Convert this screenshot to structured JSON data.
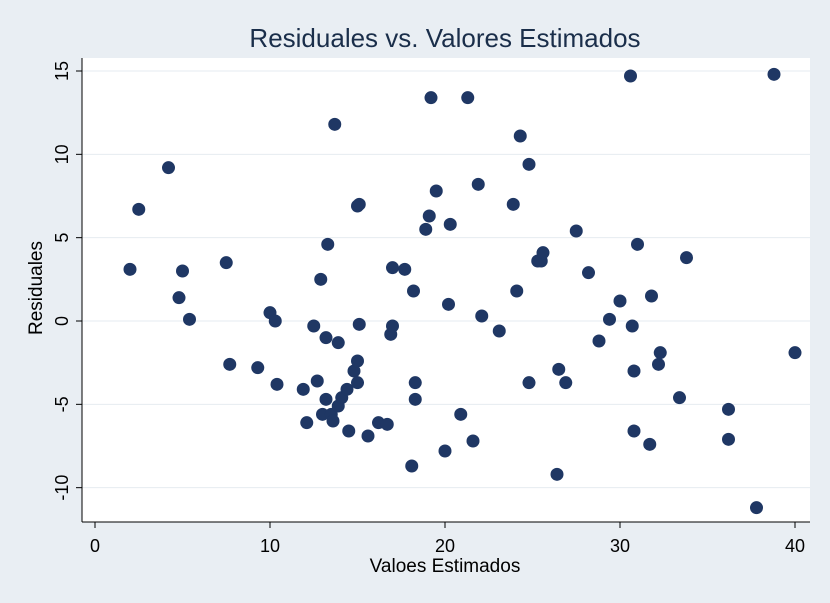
{
  "chart_data": {
    "type": "scatter",
    "title": "Residuales vs. Valores Estimados",
    "xlabel": "Valoes Estimados",
    "ylabel": "Residuales",
    "xlim": [
      0,
      40
    ],
    "ylim": [
      -10,
      15
    ],
    "xticks": [
      0,
      10,
      20,
      30,
      40
    ],
    "yticks": [
      -10,
      -5,
      0,
      5,
      10,
      15
    ],
    "grid": true,
    "colors": {
      "background": "#e9eef3",
      "plot_area": "#ffffff",
      "grid": "#e6ebf0",
      "point": "#1f3764",
      "title": "#1a2e4a"
    },
    "series": [
      {
        "points": [
          [
            2.0,
            3.1
          ],
          [
            2.5,
            6.7
          ],
          [
            4.2,
            9.2
          ],
          [
            4.8,
            1.4
          ],
          [
            5.0,
            3.0
          ],
          [
            5.4,
            0.1
          ],
          [
            7.5,
            3.5
          ],
          [
            7.7,
            -2.6
          ],
          [
            9.3,
            -2.8
          ],
          [
            10.0,
            0.5
          ],
          [
            10.3,
            0.0
          ],
          [
            10.4,
            -3.8
          ],
          [
            11.9,
            -4.1
          ],
          [
            12.1,
            -6.1
          ],
          [
            12.5,
            -0.3
          ],
          [
            12.7,
            -3.6
          ],
          [
            12.9,
            2.5
          ],
          [
            13.0,
            -5.6
          ],
          [
            13.2,
            -1.0
          ],
          [
            13.2,
            -4.7
          ],
          [
            13.3,
            4.6
          ],
          [
            13.5,
            -5.6
          ],
          [
            13.6,
            -6.0
          ],
          [
            13.7,
            11.8
          ],
          [
            13.9,
            -1.3
          ],
          [
            13.9,
            -5.1
          ],
          [
            14.1,
            -4.6
          ],
          [
            14.4,
            -4.1
          ],
          [
            14.5,
            -6.6
          ],
          [
            14.8,
            -3.0
          ],
          [
            15.0,
            -2.4
          ],
          [
            15.0,
            -3.7
          ],
          [
            15.0,
            6.9
          ],
          [
            15.1,
            7.0
          ],
          [
            15.1,
            -0.2
          ],
          [
            15.6,
            -6.9
          ],
          [
            16.2,
            -6.1
          ],
          [
            16.7,
            -6.2
          ],
          [
            16.9,
            -0.8
          ],
          [
            17.0,
            -0.3
          ],
          [
            17.0,
            3.2
          ],
          [
            17.7,
            3.1
          ],
          [
            18.1,
            -8.7
          ],
          [
            18.2,
            1.8
          ],
          [
            18.3,
            -3.7
          ],
          [
            18.3,
            -4.7
          ],
          [
            18.9,
            5.5
          ],
          [
            19.1,
            6.3
          ],
          [
            19.2,
            13.4
          ],
          [
            19.5,
            7.8
          ],
          [
            20.0,
            -7.8
          ],
          [
            20.2,
            1.0
          ],
          [
            20.3,
            5.8
          ],
          [
            20.9,
            -5.6
          ],
          [
            21.3,
            13.4
          ],
          [
            21.6,
            -7.2
          ],
          [
            21.9,
            8.2
          ],
          [
            22.1,
            0.3
          ],
          [
            23.1,
            -0.6
          ],
          [
            23.9,
            7.0
          ],
          [
            24.1,
            1.8
          ],
          [
            24.3,
            11.1
          ],
          [
            24.8,
            9.4
          ],
          [
            24.8,
            -3.7
          ],
          [
            25.3,
            3.6
          ],
          [
            25.5,
            3.6
          ],
          [
            25.6,
            4.1
          ],
          [
            26.4,
            -9.2
          ],
          [
            26.5,
            -2.9
          ],
          [
            26.9,
            -3.7
          ],
          [
            27.5,
            5.4
          ],
          [
            28.2,
            2.9
          ],
          [
            28.8,
            -1.2
          ],
          [
            29.4,
            0.1
          ],
          [
            30.0,
            1.2
          ],
          [
            30.6,
            14.7
          ],
          [
            30.7,
            -0.3
          ],
          [
            30.8,
            -3.0
          ],
          [
            30.8,
            -6.6
          ],
          [
            31.0,
            4.6
          ],
          [
            31.7,
            -7.4
          ],
          [
            31.8,
            1.5
          ],
          [
            32.2,
            -2.6
          ],
          [
            32.3,
            -1.9
          ],
          [
            33.4,
            -4.6
          ],
          [
            33.8,
            3.8
          ],
          [
            36.2,
            -5.3
          ],
          [
            36.2,
            -7.1
          ],
          [
            37.8,
            -11.2
          ],
          [
            38.8,
            14.8
          ],
          [
            40.0,
            -1.9
          ]
        ]
      }
    ]
  }
}
